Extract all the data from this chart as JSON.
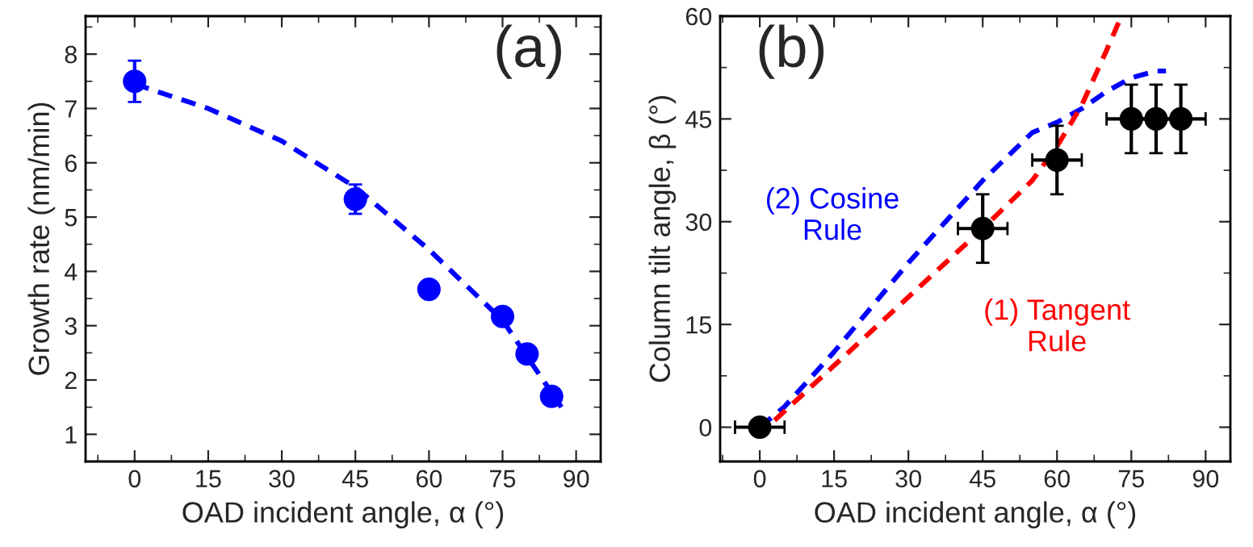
{
  "chart_data": [
    {
      "type": "scatter",
      "xlabel": "OAD incident angle, α (°)",
      "ylabel": "Growth rate (nm/min)",
      "xlim": [
        -10,
        95
      ],
      "ylim": [
        0.5,
        8.7
      ],
      "xticks": [
        0,
        15,
        30,
        45,
        60,
        75,
        90
      ],
      "yticks": [
        1,
        2,
        3,
        4,
        5,
        6,
        7,
        8
      ],
      "marker": "circle",
      "grid": false,
      "legend": false,
      "annotations": [
        "(a)"
      ],
      "series": [
        {
          "color": "#0000ff",
          "x": [
            0,
            45,
            60,
            75,
            80,
            85
          ],
          "values": [
            7.5,
            5.33,
            3.67,
            3.17,
            2.48,
            1.7
          ],
          "errors": [
            0.38,
            0.27,
            0.1,
            null,
            null,
            null
          ]
        },
        {
          "type": "line",
          "line_style": "dashed",
          "marker": "none",
          "color": "#0000ff",
          "x": [
            0,
            15,
            30,
            45,
            60,
            75,
            87
          ],
          "values": [
            7.45,
            7.0,
            6.4,
            5.55,
            4.4,
            3.1,
            1.5
          ]
        }
      ]
    },
    {
      "type": "scatter",
      "xlabel": "OAD incident angle, α (°)",
      "ylabel": "Column tilt angle, β (°)",
      "xlim": [
        -8,
        95
      ],
      "ylim": [
        -5,
        60
      ],
      "xticks": [
        0,
        15,
        30,
        45,
        60,
        75,
        90
      ],
      "yticks": [
        0,
        15,
        30,
        45,
        60
      ],
      "marker": "circle",
      "grid": false,
      "legend": false,
      "annotations": [
        "(b)"
      ],
      "series": [
        {
          "type": "line",
          "name": "(2) Cosine\nRule",
          "line_style": "dashed",
          "marker": "none",
          "color": "#0000ff",
          "x": [
            0,
            5,
            15,
            30,
            45,
            55,
            60,
            65,
            70,
            75,
            80,
            82
          ],
          "values": [
            0,
            3,
            11,
            24,
            36,
            43,
            44.5,
            46.5,
            49,
            51,
            52,
            52
          ]
        },
        {
          "type": "line",
          "name": "(1) Tangent\nRule",
          "line_style": "dashed",
          "marker": "none",
          "color": "#ff0000",
          "x": [
            3,
            15,
            30,
            45,
            55,
            60,
            65,
            70,
            73
          ],
          "values": [
            1,
            9,
            19,
            29,
            36,
            41,
            47,
            55,
            60
          ]
        },
        {
          "color": "#000000",
          "x": [
            0,
            45,
            60,
            75,
            80,
            85
          ],
          "values": [
            0,
            29,
            39,
            45,
            45,
            45
          ],
          "errors": [
            null,
            5,
            5,
            5,
            5,
            5
          ],
          "xerrors": [
            5,
            5,
            5,
            5,
            5,
            5
          ]
        }
      ]
    }
  ]
}
